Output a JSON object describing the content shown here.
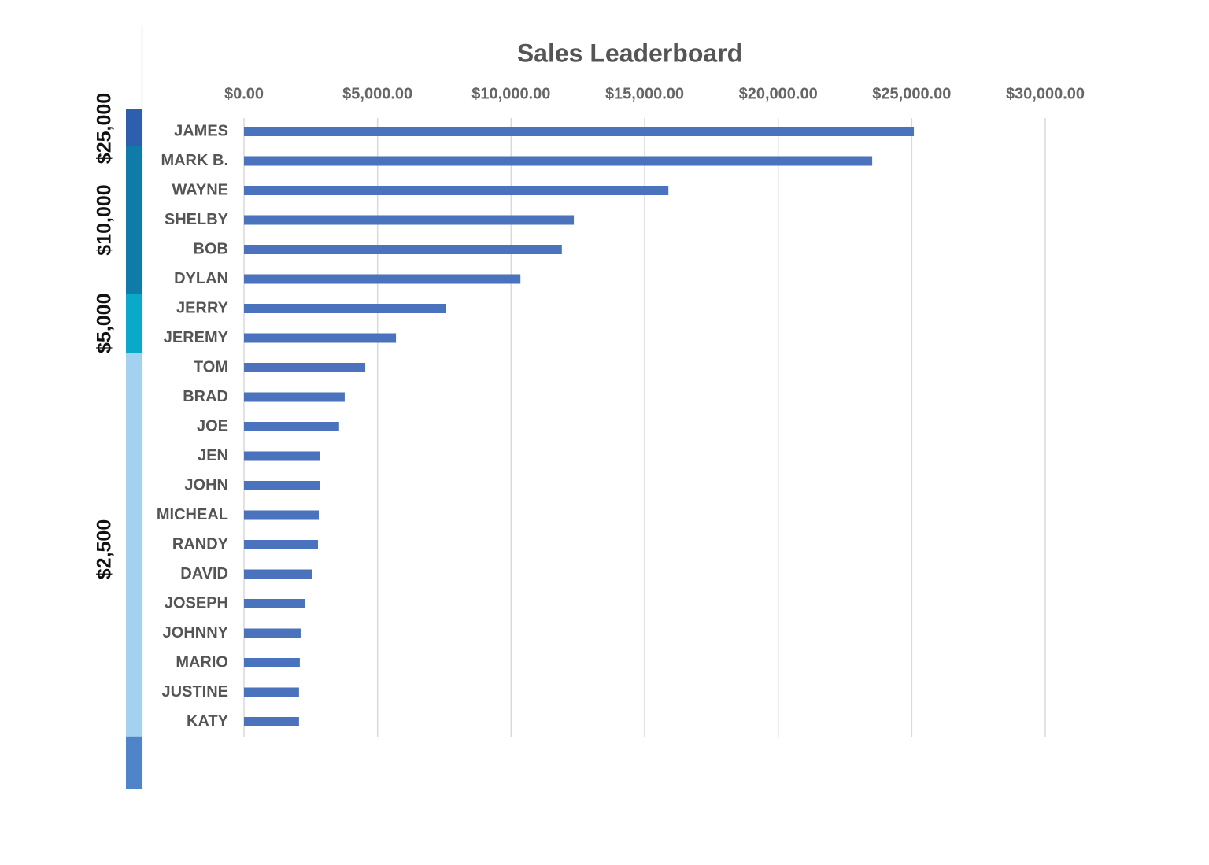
{
  "chart_data": {
    "type": "bar",
    "orientation": "horizontal",
    "title": "Sales Leaderboard",
    "categories": [
      "JAMES",
      "MARK B.",
      "WAYNE",
      "SHELBY",
      "BOB",
      "DYLAN",
      "JERRY",
      "JEREMY",
      "TOM",
      "BRAD",
      "JOE",
      "JEN",
      "JOHN",
      "MICHEAL",
      "RANDY",
      "DAVID",
      "JOSEPH",
      "JOHNNY",
      "MARIO",
      "JUSTINE",
      "KATY"
    ],
    "values": [
      25080,
      23520,
      15890,
      12350,
      11900,
      10350,
      7570,
      5690,
      4540,
      3770,
      3560,
      2830,
      2830,
      2800,
      2770,
      2540,
      2270,
      2120,
      2090,
      2060,
      2060
    ],
    "color": "#4a72bd",
    "xlim": [
      0,
      30000
    ],
    "xticks": [
      {
        "value": 0,
        "label": "$0.00"
      },
      {
        "value": 5000,
        "label": "$5,000.00"
      },
      {
        "value": 10000,
        "label": "$10,000.00"
      },
      {
        "value": 15000,
        "label": "$15,000.00"
      },
      {
        "value": 20000,
        "label": "$20,000.00"
      },
      {
        "value": 25000,
        "label": "$25,000.00"
      },
      {
        "value": 30000,
        "label": "$30,000.00"
      }
    ],
    "grid": true,
    "tiers": [
      {
        "label": "$25,000",
        "color": "#2e5fae"
      },
      {
        "label": "$10,000",
        "color": "#0e7ba8"
      },
      {
        "label": "$5,000",
        "color": "#0ba9c9"
      },
      {
        "label": "$2,500",
        "color": "#a3d2f0"
      }
    ]
  }
}
